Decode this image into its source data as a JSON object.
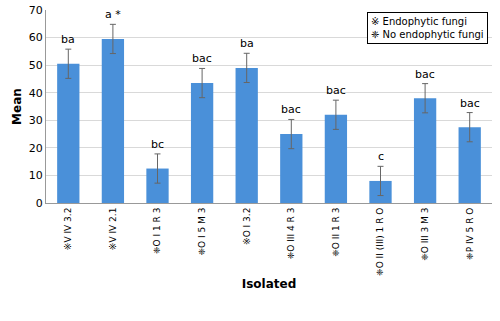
{
  "chart_data": {
    "type": "bar",
    "categories": [
      "※V IV 3.2",
      "※V IV 2.1",
      "❈O I 1 R 3",
      "❈O I 5 M 3",
      "※O I 3.2",
      "❈O III 4 R 3",
      "❈O II 1 R 3",
      "❈O II (III) 1 R O",
      "❈O III 3 M 3",
      "❈P IV 5 R O"
    ],
    "values": [
      50.5,
      59.5,
      12.5,
      43.5,
      49,
      25,
      32,
      8,
      38,
      27.5
    ],
    "errors": [
      5.3,
      5.3,
      5.3,
      5.3,
      5.3,
      5.3,
      5.3,
      5.3,
      5.3,
      5.3
    ],
    "group_letters": [
      "ba",
      "a *",
      "bc",
      "bac",
      "ba",
      "bac",
      "bac",
      "c",
      "bac",
      "bac"
    ],
    "color": "#4a90d9",
    "x_label": "Isolated",
    "y_label": "Mean",
    "ylim": [
      0,
      70
    ],
    "yticks": [
      0,
      10,
      20,
      30,
      40,
      50,
      60,
      70
    ],
    "grid": true,
    "annotations": [
      "※ Endophytic fungi",
      "❈ No endophytic fungi"
    ]
  }
}
